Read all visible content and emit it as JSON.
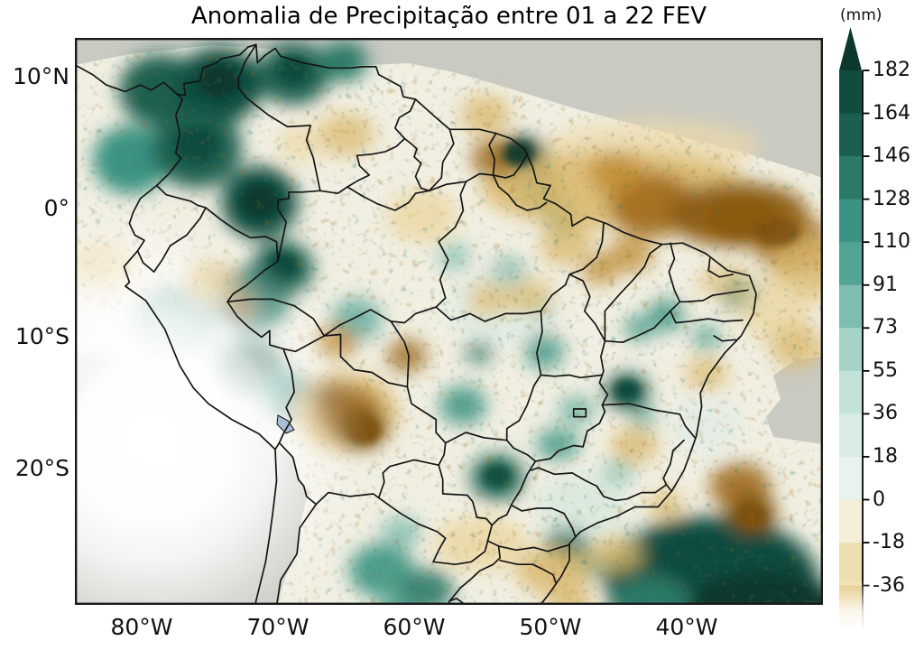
{
  "title": "Anomalia de Precipitação entre 01 a 22 FEV",
  "colorbar": {
    "unit_label": "(mm)",
    "tick_labels": [
      "182",
      "164",
      "146",
      "128",
      "110",
      "91",
      "73",
      "55",
      "36",
      "18",
      "0",
      "-18",
      "-36"
    ],
    "segment_colors_top_to_bottom": [
      "#114c3f",
      "#1b5f50",
      "#2b7968",
      "#3a9383",
      "#52a495",
      "#7ebdb0",
      "#a5d3c8",
      "#c3e2da",
      "#d9ece7",
      "#e9f2ee",
      "#f6efd8",
      "#eedfb2"
    ],
    "below_min_color": "#e3c77e",
    "arrow_color": "#0b392f"
  },
  "axes": {
    "y_tick_labels": [
      "10°N",
      "0°",
      "10°S",
      "20°S"
    ],
    "x_tick_labels": [
      "80°W",
      "70°W",
      "60°W",
      "50°W",
      "40°W"
    ]
  },
  "map_colors": {
    "ocean_nodata_gray": "#c9cac2",
    "land_base": "#f1efe2",
    "border_line": "#151515",
    "frame_line": "#1a1a1a",
    "lake_fill": "#a9bdd6",
    "teal_darkest": "#0b392f",
    "teal_dark2": "#114c3f",
    "teal_dark3": "#1b5f50",
    "teal_mid1": "#2b7968",
    "teal_mid2": "#3a9383",
    "teal_mid3": "#52a495",
    "teal_light1": "#7ebdb0",
    "teal_light2": "#a5d3c8",
    "teal_pale1": "#c3e2da",
    "teal_pale2": "#d9ece7",
    "brown_darkest": "#7d5110",
    "brown_dark": "#8a5a12",
    "brown_mid": "#a06c1c",
    "brown_light": "#bf8a2e",
    "tan": "#dbb96e",
    "tan_pale": "#ecd9a8"
  },
  "chart_data": {
    "type": "heatmap",
    "title": "Anomalia de Precipitação entre 01 a 22 FEV",
    "colorbar": {
      "label": "(mm)",
      "ticks": [
        182,
        164,
        146,
        128,
        110,
        91,
        73,
        55,
        36,
        18,
        0,
        -18,
        -36
      ],
      "extends_above_max_with_arrow": true,
      "fades_out_below_min": true,
      "palette": "diverging brown (negative) to teal/green (positive), BrBG-like, discrete 18 mm steps"
    },
    "x_ticklabels": [
      "80°W",
      "70°W",
      "60°W",
      "50°W",
      "40°W"
    ],
    "y_ticklabels": [
      "10°N",
      "0°",
      "10°S",
      "20°S"
    ],
    "axis_ranges": {
      "lon_deg": [
        -85,
        -30
      ],
      "lat_deg": [
        -30.5,
        12.9
      ]
    },
    "grid": false,
    "map_region": "South America (Brazil and neighbouring countries, state and country borders drawn in black)",
    "regions_estimates_mm": [
      {
        "region": "Colombia and Colombia–Venezuela border (northwest)",
        "anomaly_mm": "+110 to +182"
      },
      {
        "region": "Andes of Ecuador and northern/central Peru into Acre",
        "anomaly_mm": "+73 to +164"
      },
      {
        "region": "Amapá coast (northern Brazil)",
        "anomaly_mm": "+110 to +164"
      },
      {
        "region": "Band across north Northeast Brazil (E Pará, Maranhão, Piauí, Ceará)",
        "anomaly_mm": "-36 and below (dark brown)"
      },
      {
        "region": "Roraima / Guyana border",
        "anomaly_mm": "-18 to -36"
      },
      {
        "region": "Central Bolivia",
        "anomaly_mm": "-36 and below (dark brown)"
      },
      {
        "region": "Espírito Santo coast and adjacent Atlantic",
        "anomaly_mm": "-36 and below"
      },
      {
        "region": "South Atlantic off southeast Brazil (bottom right)",
        "anomaly_mm": "+128 to +182"
      },
      {
        "region": "Scattered patches over central Brazil (Goiás, Tocantins, Mato Grosso)",
        "anomaly_mm": "+18 to +91"
      },
      {
        "region": "Northern Argentina / Paraguay",
        "anomaly_mm": "-18 to +55 patches"
      }
    ],
    "no_data_gray_regions": [
      "top-right Atlantic corner",
      "thin Caribbean strip along top",
      "southeast Pacific and Chile (bottom-left)",
      "mid right-edge Atlantic strip"
    ],
    "image_artifacts": [
      "large white radial fade (watermark-like) over Peru / lower-left of map",
      "white fade at bottom end of colorbar"
    ]
  }
}
